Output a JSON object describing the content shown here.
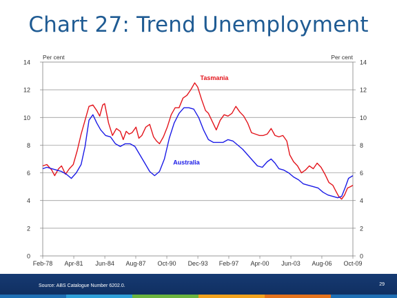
{
  "slide": {
    "title": "Chart 27: Trend Unemployment",
    "source": "Source: ABS Catalogue Number 6202.0.",
    "page_number": "29",
    "strip_colors": [
      "#1f6fb4",
      "#2f9fd8",
      "#6bb43f",
      "#f2a21c",
      "#e5731c",
      "#1f6fb4"
    ]
  },
  "chart_data": {
    "type": "line",
    "title": "",
    "ylabel_left": "Per cent",
    "ylabel_right": "Per cent",
    "ylim": [
      0,
      14
    ],
    "yticks": [
      0,
      2,
      4,
      6,
      8,
      10,
      12,
      14
    ],
    "xlim": [
      1978.08,
      2009.75
    ],
    "xticks": [
      {
        "x": 1978.08,
        "label": "Feb-78"
      },
      {
        "x": 1981.25,
        "label": "Apr-81"
      },
      {
        "x": 1984.42,
        "label": "Jun-84"
      },
      {
        "x": 1987.58,
        "label": "Aug-87"
      },
      {
        "x": 1990.75,
        "label": "Oct-90"
      },
      {
        "x": 1993.92,
        "label": "Dec-93"
      },
      {
        "x": 1997.08,
        "label": "Feb-97"
      },
      {
        "x": 2000.25,
        "label": "Apr-00"
      },
      {
        "x": 2003.42,
        "label": "Jun-03"
      },
      {
        "x": 2006.58,
        "label": "Aug-06"
      },
      {
        "x": 2009.75,
        "label": "Oct-09"
      }
    ],
    "grid": true,
    "series": [
      {
        "name": "Tasmania",
        "color": "#e3141b",
        "points": [
          [
            1978.08,
            6.5
          ],
          [
            1978.5,
            6.6
          ],
          [
            1979.0,
            6.2
          ],
          [
            1979.3,
            5.8
          ],
          [
            1979.7,
            6.3
          ],
          [
            1980.0,
            6.5
          ],
          [
            1980.4,
            5.9
          ],
          [
            1980.8,
            6.3
          ],
          [
            1981.2,
            6.6
          ],
          [
            1981.6,
            7.6
          ],
          [
            1982.0,
            8.8
          ],
          [
            1982.4,
            9.8
          ],
          [
            1982.8,
            10.8
          ],
          [
            1983.2,
            10.9
          ],
          [
            1983.6,
            10.5
          ],
          [
            1983.9,
            10.1
          ],
          [
            1984.2,
            10.9
          ],
          [
            1984.4,
            11.0
          ],
          [
            1984.8,
            9.6
          ],
          [
            1985.2,
            8.7
          ],
          [
            1985.6,
            9.2
          ],
          [
            1986.0,
            9.0
          ],
          [
            1986.3,
            8.4
          ],
          [
            1986.6,
            9.0
          ],
          [
            1986.9,
            8.8
          ],
          [
            1987.2,
            8.9
          ],
          [
            1987.6,
            9.3
          ],
          [
            1987.9,
            8.5
          ],
          [
            1988.2,
            8.7
          ],
          [
            1988.6,
            9.3
          ],
          [
            1989.0,
            9.5
          ],
          [
            1989.4,
            8.6
          ],
          [
            1989.7,
            8.3
          ],
          [
            1990.0,
            8.1
          ],
          [
            1990.4,
            8.6
          ],
          [
            1990.8,
            9.3
          ],
          [
            1991.2,
            10.2
          ],
          [
            1991.6,
            10.7
          ],
          [
            1992.0,
            10.7
          ],
          [
            1992.4,
            11.4
          ],
          [
            1992.8,
            11.6
          ],
          [
            1993.2,
            12.0
          ],
          [
            1993.6,
            12.5
          ],
          [
            1993.9,
            12.2
          ],
          [
            1994.3,
            11.3
          ],
          [
            1994.7,
            10.5
          ],
          [
            1995.0,
            10.3
          ],
          [
            1995.4,
            9.7
          ],
          [
            1995.8,
            9.1
          ],
          [
            1996.2,
            9.8
          ],
          [
            1996.6,
            10.2
          ],
          [
            1997.0,
            10.1
          ],
          [
            1997.4,
            10.3
          ],
          [
            1997.8,
            10.8
          ],
          [
            1998.2,
            10.4
          ],
          [
            1998.6,
            10.1
          ],
          [
            1999.0,
            9.6
          ],
          [
            1999.4,
            8.9
          ],
          [
            1999.8,
            8.8
          ],
          [
            2000.2,
            8.7
          ],
          [
            2000.6,
            8.7
          ],
          [
            2001.0,
            8.8
          ],
          [
            2001.4,
            9.2
          ],
          [
            2001.8,
            8.7
          ],
          [
            2002.2,
            8.6
          ],
          [
            2002.6,
            8.7
          ],
          [
            2003.0,
            8.3
          ],
          [
            2003.3,
            7.3
          ],
          [
            2003.7,
            6.8
          ],
          [
            2004.1,
            6.5
          ],
          [
            2004.5,
            6.0
          ],
          [
            2004.9,
            6.2
          ],
          [
            2005.3,
            6.5
          ],
          [
            2005.7,
            6.3
          ],
          [
            2006.1,
            6.7
          ],
          [
            2006.5,
            6.4
          ],
          [
            2006.9,
            5.9
          ],
          [
            2007.3,
            5.3
          ],
          [
            2007.7,
            5.1
          ],
          [
            2008.0,
            4.7
          ],
          [
            2008.3,
            4.3
          ],
          [
            2008.6,
            4.1
          ],
          [
            2008.9,
            4.4
          ],
          [
            2009.2,
            4.9
          ],
          [
            2009.5,
            5.0
          ],
          [
            2009.75,
            5.1
          ]
        ]
      },
      {
        "name": "Australia",
        "color": "#1a1ae6",
        "points": [
          [
            1978.08,
            6.3
          ],
          [
            1978.5,
            6.4
          ],
          [
            1979.0,
            6.3
          ],
          [
            1979.5,
            6.2
          ],
          [
            1980.0,
            6.1
          ],
          [
            1980.5,
            5.9
          ],
          [
            1981.0,
            5.6
          ],
          [
            1981.5,
            6.0
          ],
          [
            1982.0,
            6.6
          ],
          [
            1982.4,
            7.9
          ],
          [
            1982.8,
            9.8
          ],
          [
            1983.2,
            10.2
          ],
          [
            1983.6,
            9.6
          ],
          [
            1984.0,
            9.1
          ],
          [
            1984.5,
            8.7
          ],
          [
            1985.0,
            8.6
          ],
          [
            1985.5,
            8.1
          ],
          [
            1986.0,
            7.9
          ],
          [
            1986.5,
            8.1
          ],
          [
            1987.0,
            8.1
          ],
          [
            1987.5,
            7.9
          ],
          [
            1988.0,
            7.3
          ],
          [
            1988.5,
            6.7
          ],
          [
            1989.0,
            6.1
          ],
          [
            1989.5,
            5.8
          ],
          [
            1990.0,
            6.1
          ],
          [
            1990.5,
            7.0
          ],
          [
            1991.0,
            8.5
          ],
          [
            1991.5,
            9.6
          ],
          [
            1992.0,
            10.3
          ],
          [
            1992.5,
            10.7
          ],
          [
            1993.0,
            10.7
          ],
          [
            1993.5,
            10.6
          ],
          [
            1994.0,
            10.0
          ],
          [
            1994.5,
            9.1
          ],
          [
            1995.0,
            8.4
          ],
          [
            1995.5,
            8.2
          ],
          [
            1996.0,
            8.2
          ],
          [
            1996.5,
            8.2
          ],
          [
            1997.0,
            8.4
          ],
          [
            1997.5,
            8.3
          ],
          [
            1998.0,
            8.0
          ],
          [
            1998.5,
            7.7
          ],
          [
            1999.0,
            7.3
          ],
          [
            1999.5,
            6.9
          ],
          [
            2000.0,
            6.5
          ],
          [
            2000.5,
            6.4
          ],
          [
            2001.0,
            6.8
          ],
          [
            2001.4,
            7.0
          ],
          [
            2001.8,
            6.7
          ],
          [
            2002.2,
            6.3
          ],
          [
            2002.7,
            6.2
          ],
          [
            2003.2,
            6.0
          ],
          [
            2003.7,
            5.7
          ],
          [
            2004.2,
            5.5
          ],
          [
            2004.7,
            5.2
          ],
          [
            2005.2,
            5.1
          ],
          [
            2005.7,
            5.0
          ],
          [
            2006.2,
            4.9
          ],
          [
            2006.7,
            4.6
          ],
          [
            2007.2,
            4.4
          ],
          [
            2007.7,
            4.3
          ],
          [
            2008.2,
            4.2
          ],
          [
            2008.6,
            4.3
          ],
          [
            2009.0,
            5.0
          ],
          [
            2009.3,
            5.6
          ],
          [
            2009.75,
            5.8
          ]
        ]
      }
    ]
  }
}
